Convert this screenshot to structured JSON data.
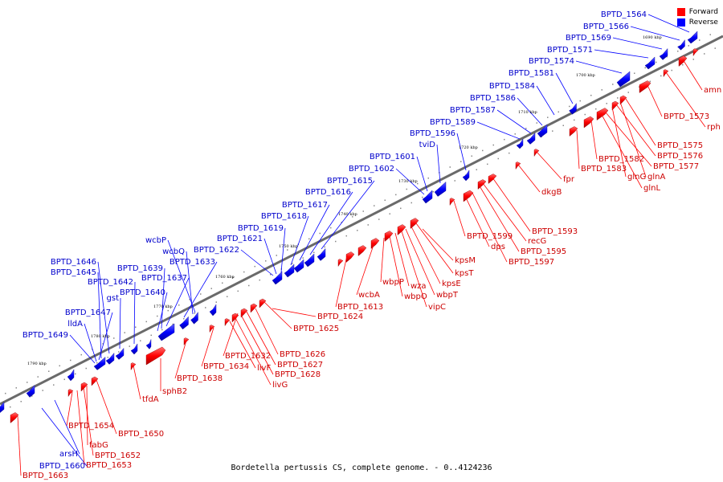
{
  "colors": {
    "forward": "#ff0000",
    "reverse": "#0000ff",
    "forward_text": "#cc0000",
    "reverse_text": "#0000cc",
    "backbone": "#666666"
  },
  "legend": {
    "forward": "Forward",
    "reverse": "Reverse"
  },
  "caption": "Bordetella pertussis CS, complete genome. - 0..4124236",
  "ticks": [
    "1690 kbp",
    "1700 kbp",
    "1710 kbp",
    "1720 kbp",
    "1730 kbp",
    "1740 kbp",
    "1750 kbp",
    "1760 kbp",
    "1770 kbp",
    "1780 kbp",
    "1790 kbp"
  ],
  "reverse_genes": [
    "BPTD_1564",
    "BPTD_1566",
    "BPTD_1569",
    "BPTD_1571",
    "BPTD_1574",
    "BPTD_1581",
    "BPTD_1584",
    "BPTD_1586",
    "BPTD_1587",
    "BPTD_1589",
    "BPTD_1596",
    "tviD",
    "BPTD_1601",
    "BPTD_1602",
    "BPTD_1615",
    "BPTD_1616",
    "BPTD_1617",
    "BPTD_1618",
    "BPTD_1619",
    "BPTD_1621",
    "BPTD_1622",
    "wcbP",
    "wcbQ",
    "BPTD_1633",
    "BPTD_1637",
    "BPTD_1639",
    "BPTD_1640",
    "BPTD_1642",
    "gst",
    "BPTD_1646",
    "BPTD_1645",
    "BPTD_1647",
    "lldA",
    "BPTD_1649",
    "arsH",
    "BPTD_1660"
  ],
  "forward_genes": [
    "amn",
    "BPTD_1573",
    "rph",
    "BPTD_1575",
    "BPTD_1576",
    "BPTD_1577",
    "BPTD_1582",
    "BPTD_1583",
    "glnG",
    "glnA",
    "glnL",
    "fpr",
    "dkgB",
    "BPTD_1593",
    "recG",
    "BPTD_1595",
    "BPTD_1597",
    "dps",
    "BPTD_1599",
    "kpsM",
    "kpsT",
    "kpsE",
    "wbpT",
    "vipC",
    "wza",
    "wbpO",
    "wbpP",
    "wcbA",
    "BPTD_1613",
    "BPTD_1624",
    "BPTD_1625",
    "BPTD_1626",
    "BPTD_1627",
    "BPTD_1628",
    "livG",
    "livF",
    "BPTD_1632",
    "BPTD_1634",
    "BPTD_1638",
    "sphB2",
    "tfdA",
    "BPTD_1650",
    "fabG",
    "BPTD_1652",
    "BPTD_1653",
    "BPTD_1654",
    "BPTD_1663"
  ]
}
